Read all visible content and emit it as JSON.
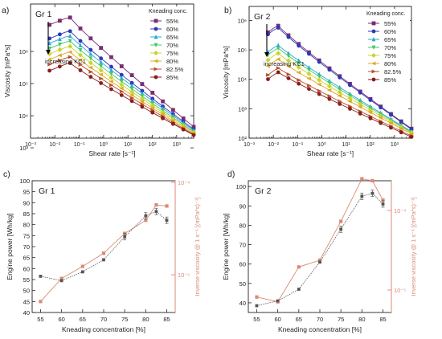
{
  "figure": {
    "panels": [
      {
        "label": "a)",
        "title": "Gr 1",
        "xlabel": "Shear rate [s⁻¹]",
        "ylabel": "Viscosity [mPa*s]",
        "legend_title": "Kneading conc.",
        "annotation": "increasing KC1"
      },
      {
        "label": "b)",
        "title": "Gr 2",
        "xlabel": "Shear rate [s⁻¹]",
        "ylabel": "Viscosity [mPa*s]",
        "legend_title": "Kneading conc.",
        "annotation": "increasing KC1"
      },
      {
        "label": "c)",
        "title": "Gr 1",
        "xlabel": "Kneading concentration [%]",
        "ylabel": "Engine power [Wh/kg]",
        "y2label": "Inverse viscosity @ 1 s⁻¹ [(mPa*s)⁻¹]"
      },
      {
        "label": "d)",
        "title": "Gr 2",
        "xlabel": "Kneading concentration [%]",
        "ylabel": "Engine power [Wh/kg]",
        "y2label": "Inverse viscosity @ 1 s⁻¹ [(mPa*s)⁻¹]"
      }
    ]
  },
  "colors": {
    "power": "#555555",
    "inverse": "#d98b73",
    "series": [
      "#7b2b74",
      "#2d38b8",
      "#2ba7d6",
      "#43c96a",
      "#c9d42c",
      "#e1a823",
      "#b5502a",
      "#8a1d1d",
      "#3e1313"
    ]
  },
  "chart_data": [
    {
      "type": "line",
      "title": "Gr 1",
      "xlabel": "Shear rate [s⁻¹]",
      "ylabel": "Viscosity [mPa*s]",
      "xscale": "log",
      "yscale": "log",
      "xlim": [
        0.001,
        5000
      ],
      "ylim": [
        200,
        3000000
      ],
      "xticks": [
        "10⁻³",
        "10⁻²",
        "10⁻¹",
        "10⁰",
        "10¹",
        "10²",
        "10³"
      ],
      "yticks": [
        "10³",
        "10⁴",
        "10⁵",
        "10⁶"
      ],
      "legend": {
        "title": "Kneading conc.",
        "position": "top-right"
      },
      "series": [
        {
          "name": "55%",
          "peak_x": 0.04,
          "peak_y": 1200000,
          "end_y": 450
        },
        {
          "name": "60%",
          "peak_x": 0.04,
          "peak_y": 450000,
          "end_y": 380
        },
        {
          "name": "65%",
          "peak_x": 0.04,
          "peak_y": 320000,
          "end_y": 350
        },
        {
          "name": "70%",
          "peak_x": 0.04,
          "peak_y": 220000,
          "end_y": 320
        },
        {
          "name": "75%",
          "peak_x": 0.04,
          "peak_y": 150000,
          "end_y": 300
        },
        {
          "name": "80%",
          "peak_x": 0.04,
          "peak_y": 100000,
          "end_y": 280
        },
        {
          "name": "82.5%",
          "peak_x": 0.04,
          "peak_y": 70000,
          "end_y": 260
        },
        {
          "name": "85%",
          "peak_x": 0.04,
          "peak_y": 45000,
          "end_y": 250
        }
      ]
    },
    {
      "type": "line",
      "title": "Gr 2",
      "xlabel": "Shear rate [s⁻¹]",
      "ylabel": "Viscosity [mPa*s]",
      "xscale": "log",
      "yscale": "log",
      "xlim": [
        0.001,
        5000
      ],
      "ylim": [
        100,
        3000000
      ],
      "xticks": [
        "10⁻³",
        "10⁻²",
        "10⁻¹",
        "10⁰",
        "10¹",
        "10²",
        "10³"
      ],
      "yticks": [
        "10²",
        "10³",
        "10⁴",
        "10⁵",
        "10⁶"
      ],
      "legend": {
        "title": "Kneading conc.",
        "position": "top-right"
      },
      "series": [
        {
          "name": "55%",
          "peak_x": 0.015,
          "peak_y": 700000,
          "end_y": 210
        },
        {
          "name": "60%",
          "peak_x": 0.015,
          "peak_y": 600000,
          "end_y": 200
        },
        {
          "name": "65%",
          "peak_x": 0.015,
          "peak_y": 150000,
          "end_y": 170
        },
        {
          "name": "70%",
          "peak_x": 0.015,
          "peak_y": 120000,
          "end_y": 160
        },
        {
          "name": "75%",
          "peak_x": 0.015,
          "peak_y": 80000,
          "end_y": 150
        },
        {
          "name": "80%",
          "peak_x": 0.015,
          "peak_y": 50000,
          "end_y": 140
        },
        {
          "name": "82.5%",
          "peak_x": 0.015,
          "peak_y": 25000,
          "end_y": 120
        },
        {
          "name": "85%",
          "peak_x": 0.015,
          "peak_y": 18000,
          "end_y": 110
        }
      ]
    },
    {
      "type": "line",
      "title": "Gr 1",
      "xlabel": "Kneading concentration [%]",
      "ylabel": "Engine power [Wh/kg]",
      "y2label": "Inverse viscosity @ 1 s⁻¹ [(mPa*s)⁻¹]",
      "x": [
        55,
        60,
        65,
        70,
        75,
        80,
        82.5,
        85
      ],
      "xticks": [
        55,
        60,
        65,
        70,
        75,
        80,
        85
      ],
      "xlim": [
        53,
        87
      ],
      "ylim": [
        40,
        100
      ],
      "yticks": [
        40,
        45,
        50,
        55,
        60,
        65,
        70,
        75,
        80,
        85,
        90,
        95,
        100
      ],
      "y2scale": "log",
      "y2ticks": [
        "10⁻⁵",
        "10⁻⁴"
      ],
      "series": [
        {
          "name": "Engine power",
          "axis": "left",
          "values": [
            56.5,
            54.5,
            58.5,
            64,
            74.5,
            84,
            86,
            82
          ]
        },
        {
          "name": "Inverse viscosity",
          "axis": "right",
          "values_left_scale": [
            45,
            55.5,
            61,
            67,
            76,
            82,
            89,
            88.5
          ]
        }
      ]
    },
    {
      "type": "line",
      "title": "Gr 2",
      "xlabel": "Kneading concentration [%]",
      "ylabel": "Engine power [Wh/kg]",
      "y2label": "Inverse viscosity @ 1 s⁻¹ [(mPa*s)⁻¹]",
      "x": [
        55,
        60,
        65,
        70,
        75,
        80,
        82.5,
        85
      ],
      "xticks": [
        55,
        60,
        65,
        70,
        75,
        80,
        85
      ],
      "xlim": [
        53,
        87
      ],
      "ylim": [
        35,
        103
      ],
      "yticks": [
        40,
        50,
        60,
        70,
        80,
        90,
        100
      ],
      "y2scale": "log",
      "y2ticks": [
        "10⁻⁵",
        "10⁻⁴"
      ],
      "series": [
        {
          "name": "Engine power",
          "axis": "left",
          "values": [
            38.5,
            41,
            47,
            61,
            78,
            95,
            96.5,
            91
          ]
        },
        {
          "name": "Inverse viscosity",
          "axis": "right",
          "values_left_scale": [
            43,
            40.5,
            58.5,
            62,
            82,
            104,
            103,
            93
          ]
        }
      ]
    }
  ]
}
